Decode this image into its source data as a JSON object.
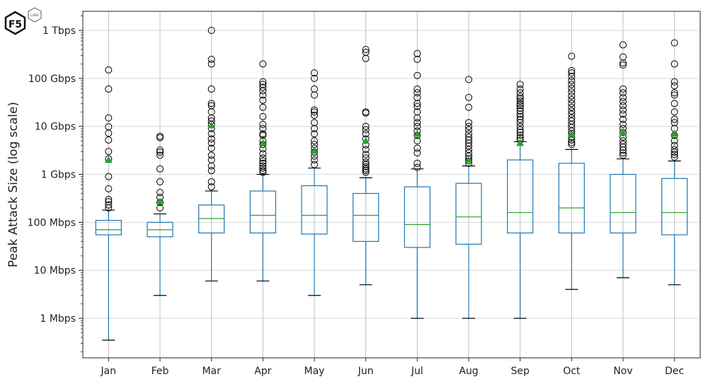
{
  "logo": {
    "brand": "F5",
    "sub": "LABS"
  },
  "chart_data": {
    "type": "box",
    "title": "",
    "xlabel": "",
    "ylabel": "Peak Attack Size (log scale)",
    "yscale": "log",
    "ylim": [
      0.15,
      2500000
    ],
    "y_unit": "Mbps",
    "y_ticks": [
      {
        "value": 1,
        "label": "1 Mbps"
      },
      {
        "value": 10,
        "label": "10 Mbps"
      },
      {
        "value": 100,
        "label": "100 Mbps"
      },
      {
        "value": 1000,
        "label": "1 Gbps"
      },
      {
        "value": 10000,
        "label": "10 Gbps"
      },
      {
        "value": 100000,
        "label": "100 Gbps"
      },
      {
        "value": 1000000,
        "label": "1 Tbps"
      }
    ],
    "grid": true,
    "colors": {
      "box": "#1f77b4",
      "median": "#2ca02c",
      "mean": "#2ca02c",
      "flier": "#000000",
      "whisker_cap": "#000000",
      "grid": "#d9d9d9"
    },
    "boxes": [
      {
        "label": "Jan",
        "whislo": 0.35,
        "q1": 55,
        "median": 70,
        "q3": 110,
        "whishi": 180,
        "mean": 2000,
        "fliers": [
          200,
          230,
          270,
          300,
          500,
          900,
          2100,
          3000,
          5200,
          7200,
          9800,
          15000,
          60000,
          150000
        ]
      },
      {
        "label": "Feb",
        "whislo": 3,
        "q1": 50,
        "median": 70,
        "q3": 100,
        "whishi": 150,
        "mean": 270,
        "fliers": [
          200,
          260,
          330,
          420,
          700,
          1300,
          2500,
          2900,
          3200,
          5800,
          6200
        ]
      },
      {
        "label": "Mar",
        "whislo": 6,
        "q1": 60,
        "median": 120,
        "q3": 230,
        "whishi": 450,
        "mean": 10500,
        "fliers": [
          550,
          700,
          1200,
          1500,
          2000,
          2500,
          3500,
          4500,
          5500,
          7000,
          9000,
          11000,
          13000,
          15000,
          20000,
          27000,
          30000,
          60000,
          200000,
          250000,
          1000000
        ]
      },
      {
        "label": "Apr",
        "whislo": 6,
        "q1": 60,
        "median": 140,
        "q3": 450,
        "whishi": 1000,
        "mean": 4500,
        "fliers": [
          1100,
          1200,
          1350,
          1500,
          1700,
          1900,
          2200,
          2700,
          3400,
          4200,
          5000,
          6500,
          7000,
          9000,
          11000,
          16000,
          25000,
          35000,
          45000,
          55000,
          65000,
          75000,
          85000,
          200000
        ]
      },
      {
        "label": "May",
        "whislo": 3,
        "q1": 57,
        "median": 140,
        "q3": 580,
        "whishi": 1350,
        "mean": 3100,
        "fliers": [
          1600,
          2000,
          2400,
          2900,
          3500,
          4200,
          5000,
          7000,
          9000,
          12000,
          17000,
          20000,
          22000,
          45000,
          60000,
          100000,
          130000
        ]
      },
      {
        "label": "Jun",
        "whislo": 5,
        "q1": 40,
        "median": 140,
        "q3": 400,
        "whishi": 850,
        "mean": 5000,
        "fliers": [
          1100,
          1200,
          1300,
          1450,
          1600,
          1800,
          2200,
          2600,
          3300,
          4100,
          5500,
          7000,
          8500,
          10000,
          19000,
          20000,
          260000,
          350000,
          400000
        ]
      },
      {
        "label": "Jul",
        "whislo": 1,
        "q1": 30,
        "median": 90,
        "q3": 550,
        "whishi": 1300,
        "mean": 7000,
        "fliers": [
          1400,
          1700,
          2800,
          3500,
          5000,
          6500,
          8000,
          10000,
          12000,
          15000,
          20000,
          26000,
          30000,
          40000,
          50000,
          60000,
          115000,
          250000,
          330000
        ]
      },
      {
        "label": "Aug",
        "whislo": 1,
        "q1": 35,
        "median": 130,
        "q3": 650,
        "whishi": 1500,
        "mean": 2000,
        "fliers": [
          1700,
          1900,
          2100,
          2400,
          2800,
          3300,
          3900,
          4500,
          5200,
          6000,
          7000,
          8500,
          10000,
          12000,
          25000,
          40000,
          95000
        ]
      },
      {
        "label": "Sep",
        "whislo": 1,
        "q1": 60,
        "median": 160,
        "q3": 2000,
        "whishi": 4800,
        "mean": 4500,
        "fliers": [
          5200,
          5800,
          6500,
          7500,
          8500,
          10000,
          12000,
          14000,
          16000,
          18000,
          21000,
          24000,
          27000,
          30000,
          34000,
          38000,
          42000,
          50000,
          60000,
          75000
        ]
      },
      {
        "label": "Oct",
        "whislo": 4,
        "q1": 60,
        "median": 200,
        "q3": 1700,
        "whishi": 3300,
        "mean": 7000,
        "fliers": [
          4200,
          4600,
          5200,
          6000,
          7000,
          8000,
          9500,
          11000,
          13000,
          15000,
          18000,
          21000,
          25000,
          30000,
          36000,
          43000,
          52000,
          62000,
          75000,
          90000,
          110000,
          130000,
          145000,
          290000
        ]
      },
      {
        "label": "Nov",
        "whislo": 7,
        "q1": 60,
        "median": 160,
        "q3": 1000,
        "whishi": 2100,
        "mean": 7500,
        "fliers": [
          2500,
          2800,
          3200,
          3700,
          4300,
          5000,
          6000,
          7500,
          9000,
          11000,
          14000,
          18000,
          22000,
          27000,
          33000,
          40000,
          50000,
          60000,
          190000,
          210000,
          280000,
          500000
        ]
      },
      {
        "label": "Dec",
        "whislo": 5,
        "q1": 55,
        "median": 160,
        "q3": 820,
        "whishi": 1900,
        "mean": 7000,
        "fliers": [
          2300,
          2600,
          2900,
          3300,
          4000,
          5000,
          6500,
          9000,
          12000,
          14000,
          20000,
          30000,
          45000,
          50000,
          70000,
          85000,
          200000,
          550000
        ]
      }
    ]
  }
}
